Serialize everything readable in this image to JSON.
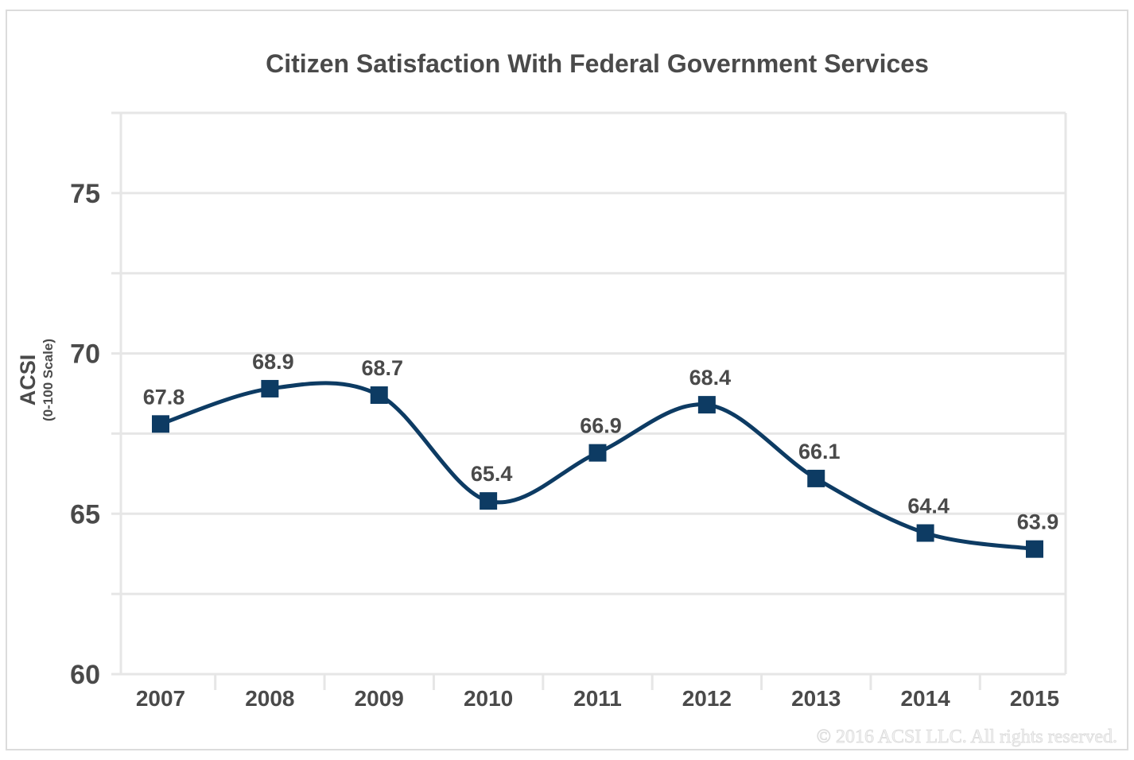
{
  "chart_data": {
    "type": "line",
    "title": "Citizen Satisfaction With Federal Government Services",
    "ylabel": "ACSI",
    "ylabel_sub": "(0-100 Scale)",
    "xlabel": "",
    "categories": [
      "2007",
      "2008",
      "2009",
      "2010",
      "2011",
      "2012",
      "2013",
      "2014",
      "2015"
    ],
    "values": [
      67.8,
      68.9,
      68.7,
      65.4,
      66.9,
      68.4,
      66.1,
      64.4,
      63.9
    ],
    "data_labels": [
      "67.8",
      "68.9",
      "68.7",
      "65.4",
      "66.9",
      "68.4",
      "66.1",
      "64.4",
      "63.9"
    ],
    "ylim": [
      60,
      77.5
    ],
    "yticks": [
      60,
      65,
      70,
      75
    ],
    "ytick_labels": [
      "60",
      "65",
      "70",
      "75"
    ],
    "gridlines": [
      60,
      62.5,
      65,
      67.5,
      70,
      72.5,
      75,
      77.5
    ],
    "grid": true,
    "smooth": true,
    "marker": "square",
    "line_color": "#0d3b63",
    "grid_color": "#e6e6e6",
    "text_color": "#4a4a4a"
  },
  "copyright": "© 2016 ACSI LLC. All rights reserved."
}
